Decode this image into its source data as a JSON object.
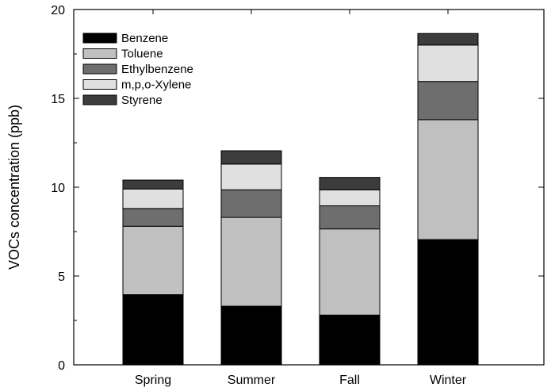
{
  "chart_data": {
    "type": "bar",
    "stacked": true,
    "title": "",
    "xlabel": "",
    "ylabel": "VOCs concentration (ppb)",
    "ylim": [
      0,
      20
    ],
    "yticks": [
      0,
      5,
      10,
      15,
      20
    ],
    "grid": false,
    "legend_position": "top-left",
    "categories": [
      "Spring",
      "Summer",
      "Fall",
      "Winter"
    ],
    "series": [
      {
        "name": "Benzene",
        "color": "#000000",
        "values": [
          3.95,
          3.3,
          2.8,
          7.05
        ]
      },
      {
        "name": "Toluene",
        "color": "#c0c0c0",
        "values": [
          3.85,
          5.0,
          4.85,
          6.75
        ]
      },
      {
        "name": "Ethylbenzene",
        "color": "#6e6e6e",
        "values": [
          1.0,
          1.55,
          1.3,
          2.15
        ]
      },
      {
        "name": "m,p,o-Xylene",
        "color": "#e0e0e0",
        "values": [
          1.1,
          1.45,
          0.9,
          2.05
        ]
      },
      {
        "name": "Styrene",
        "color": "#3c3c3c",
        "values": [
          0.5,
          0.75,
          0.7,
          0.65
        ]
      }
    ]
  }
}
